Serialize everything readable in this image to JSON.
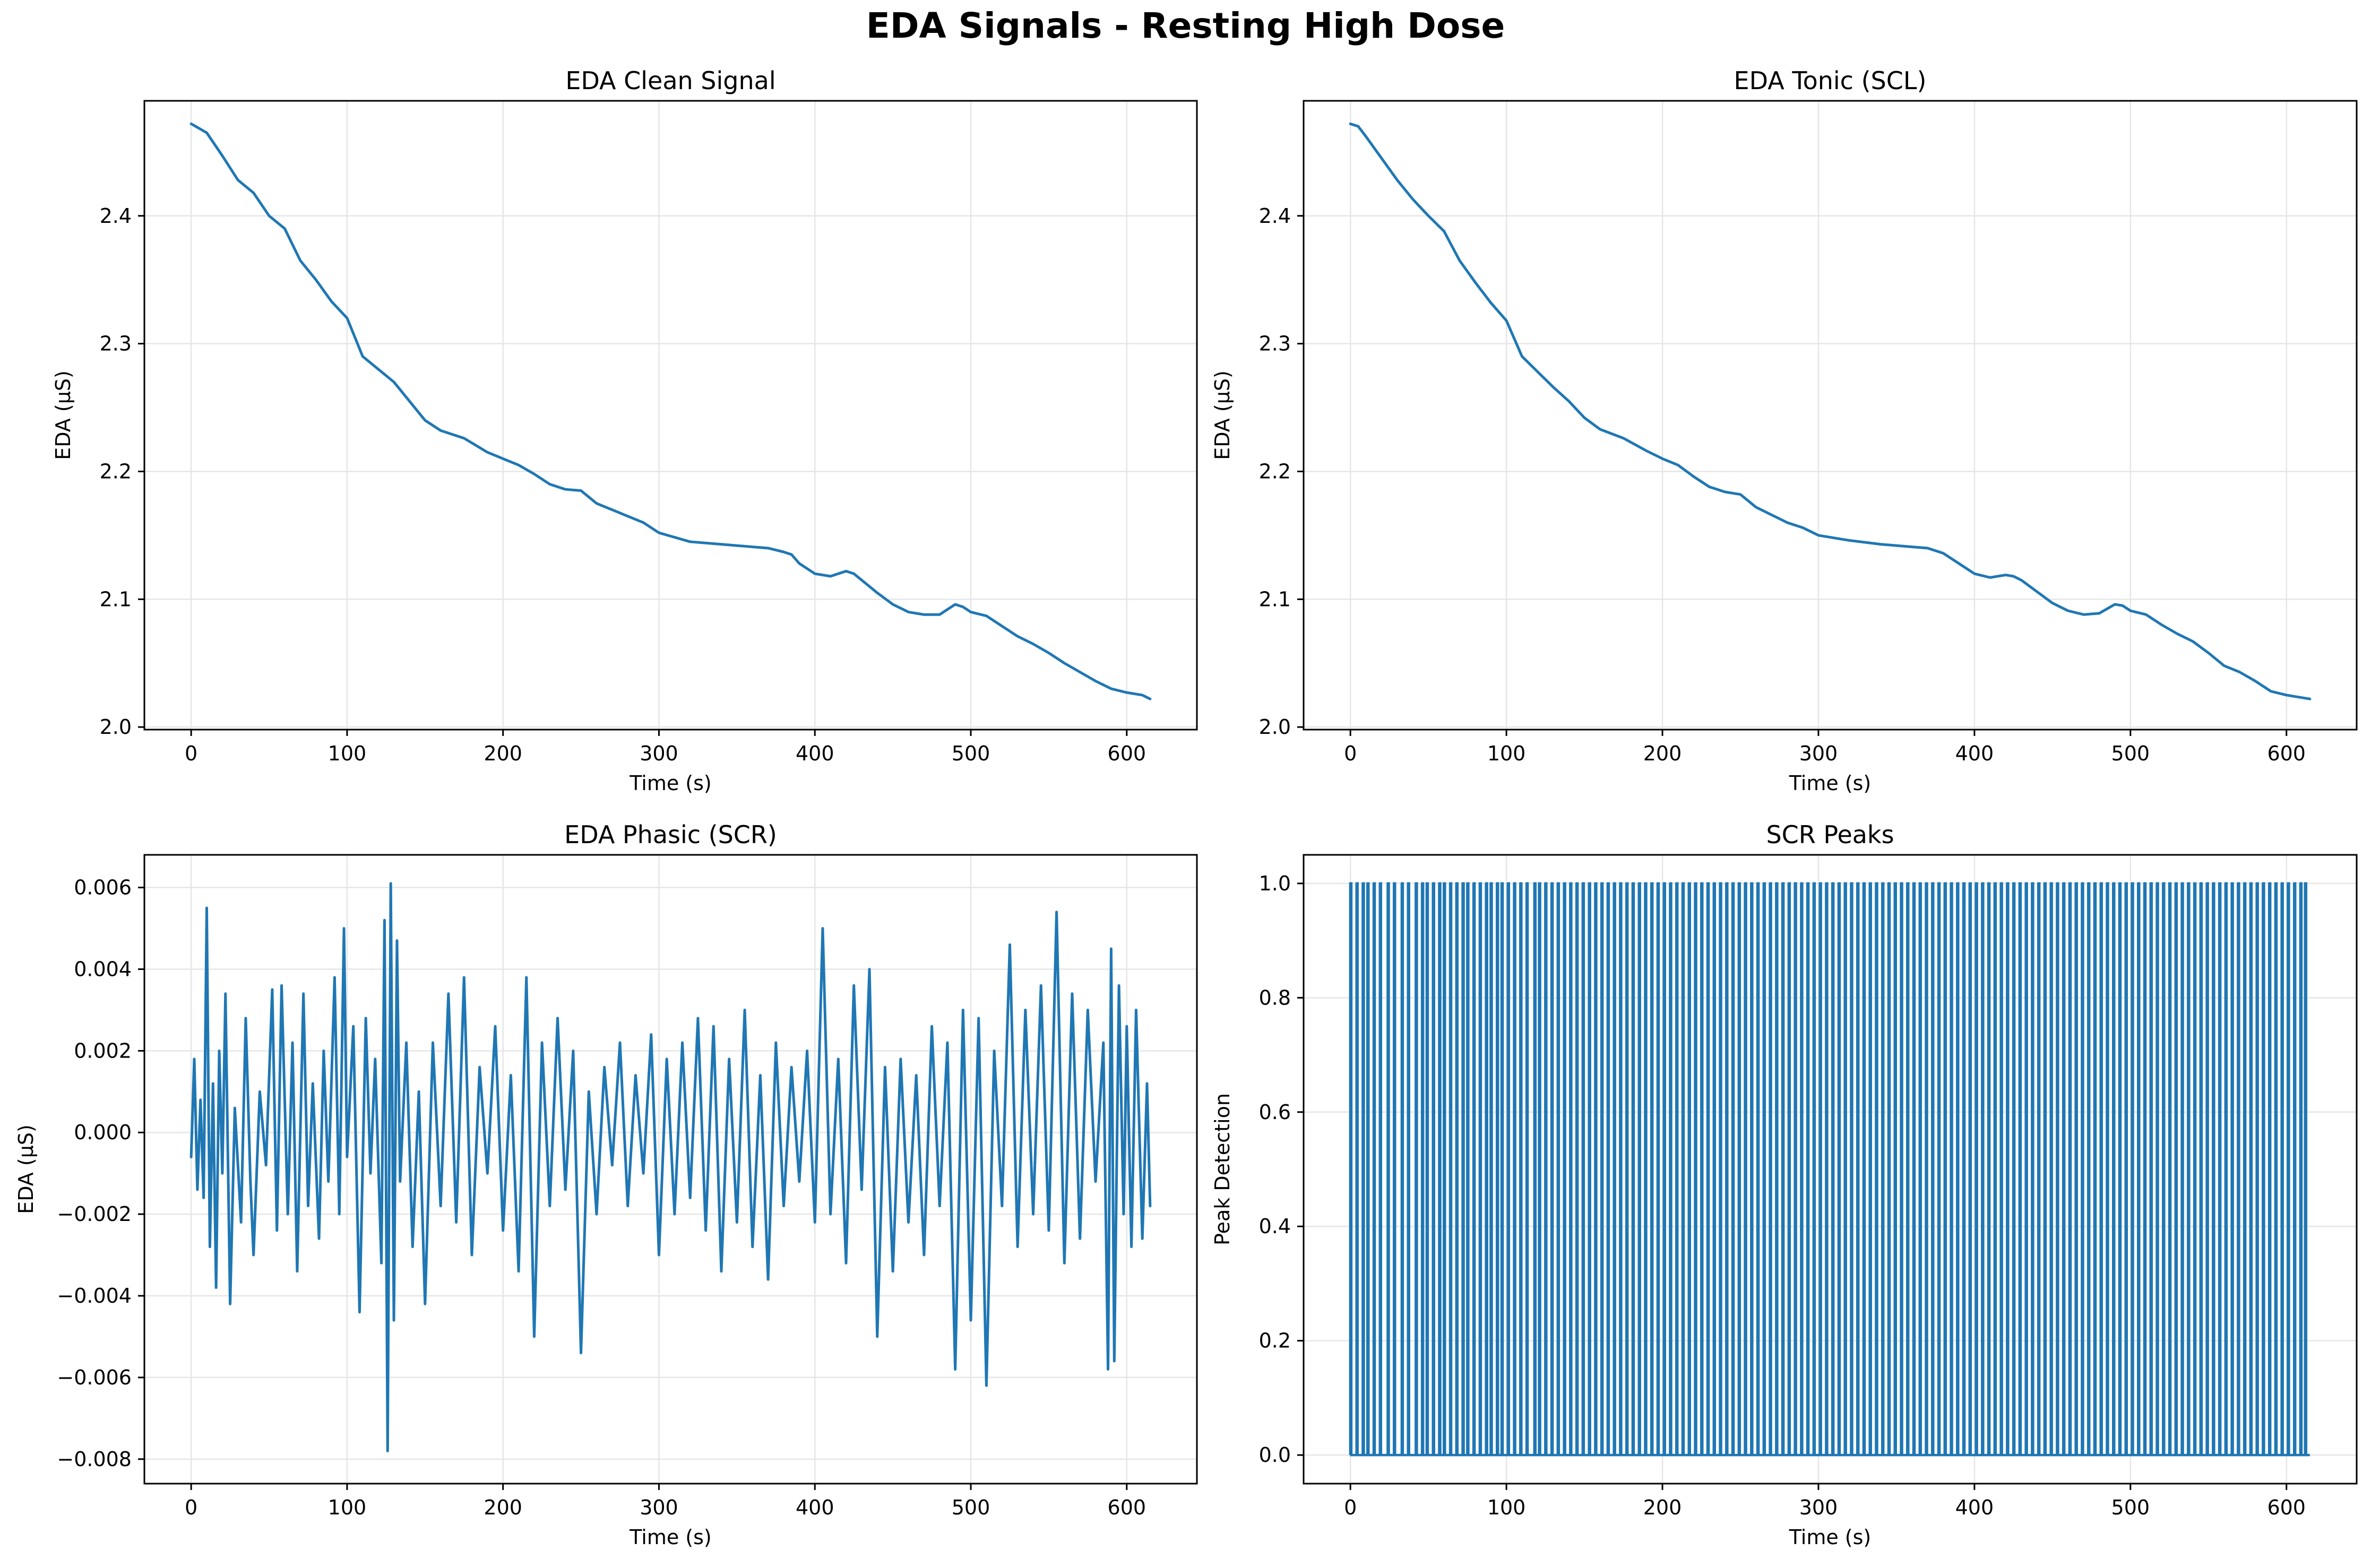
{
  "figure": {
    "suptitle": "EDA Signals - Resting High Dose"
  },
  "colors": {
    "line": "#1f77b4",
    "grid": "#e6e6e6",
    "axis": "#000000"
  },
  "chart_data": [
    {
      "type": "line",
      "title": "EDA Clean Signal",
      "xlabel": "Time (s)",
      "ylabel": "EDA (µS)",
      "xlim": [
        -30,
        645
      ],
      "ylim": [
        1.998,
        2.49
      ],
      "xticks": [
        0,
        100,
        200,
        300,
        400,
        500,
        600
      ],
      "yticks": [
        2.0,
        2.1,
        2.2,
        2.3,
        2.4
      ],
      "ytick_labels": [
        "2.0",
        "2.1",
        "2.2",
        "2.3",
        "2.4"
      ],
      "grid": true,
      "legend": "none",
      "x": [
        0,
        10,
        20,
        30,
        40,
        50,
        60,
        70,
        80,
        90,
        100,
        105,
        110,
        120,
        125,
        130,
        140,
        150,
        160,
        175,
        190,
        200,
        210,
        220,
        230,
        240,
        250,
        260,
        270,
        280,
        290,
        300,
        320,
        340,
        360,
        370,
        380,
        385,
        390,
        400,
        410,
        420,
        425,
        430,
        440,
        450,
        460,
        470,
        480,
        490,
        495,
        500,
        510,
        520,
        530,
        540,
        550,
        560,
        570,
        580,
        590,
        600,
        610,
        615
      ],
      "y": [
        2.472,
        2.465,
        2.447,
        2.428,
        2.418,
        2.4,
        2.39,
        2.365,
        2.35,
        2.333,
        2.32,
        2.305,
        2.29,
        2.28,
        2.275,
        2.27,
        2.255,
        2.24,
        2.232,
        2.226,
        2.215,
        2.21,
        2.205,
        2.198,
        2.19,
        2.186,
        2.185,
        2.175,
        2.17,
        2.165,
        2.16,
        2.152,
        2.145,
        2.143,
        2.141,
        2.14,
        2.137,
        2.135,
        2.128,
        2.12,
        2.118,
        2.122,
        2.12,
        2.115,
        2.105,
        2.096,
        2.09,
        2.088,
        2.088,
        2.096,
        2.094,
        2.09,
        2.087,
        2.079,
        2.071,
        2.065,
        2.058,
        2.05,
        2.043,
        2.036,
        2.03,
        2.027,
        2.025,
        2.022
      ]
    },
    {
      "type": "line",
      "title": "EDA Tonic (SCL)",
      "xlabel": "Time (s)",
      "ylabel": "EDA (µS)",
      "xlim": [
        -30,
        645
      ],
      "ylim": [
        1.998,
        2.49
      ],
      "xticks": [
        0,
        100,
        200,
        300,
        400,
        500,
        600
      ],
      "yticks": [
        2.0,
        2.1,
        2.2,
        2.3,
        2.4
      ],
      "ytick_labels": [
        "2.0",
        "2.1",
        "2.2",
        "2.3",
        "2.4"
      ],
      "grid": true,
      "legend": "none",
      "x": [
        0,
        5,
        10,
        20,
        30,
        40,
        50,
        60,
        70,
        80,
        90,
        100,
        110,
        120,
        130,
        140,
        150,
        160,
        175,
        190,
        200,
        210,
        220,
        230,
        240,
        250,
        260,
        270,
        280,
        290,
        300,
        320,
        340,
        360,
        370,
        380,
        390,
        400,
        410,
        420,
        425,
        430,
        440,
        450,
        460,
        470,
        480,
        490,
        495,
        500,
        510,
        520,
        530,
        540,
        550,
        560,
        570,
        580,
        590,
        600,
        610,
        615
      ],
      "y": [
        2.472,
        2.47,
        2.462,
        2.445,
        2.428,
        2.413,
        2.4,
        2.388,
        2.365,
        2.348,
        2.332,
        2.318,
        2.29,
        2.278,
        2.266,
        2.255,
        2.242,
        2.233,
        2.226,
        2.216,
        2.21,
        2.205,
        2.196,
        2.188,
        2.184,
        2.182,
        2.172,
        2.166,
        2.16,
        2.156,
        2.15,
        2.146,
        2.143,
        2.141,
        2.14,
        2.136,
        2.128,
        2.12,
        2.117,
        2.119,
        2.118,
        2.115,
        2.106,
        2.097,
        2.091,
        2.088,
        2.089,
        2.096,
        2.095,
        2.091,
        2.088,
        2.08,
        2.073,
        2.067,
        2.058,
        2.048,
        2.043,
        2.036,
        2.028,
        2.025,
        2.023,
        2.022
      ]
    },
    {
      "type": "line",
      "title": "EDA Phasic (SCR)",
      "xlabel": "Time (s)",
      "ylabel": "EDA (µS)",
      "xlim": [
        -30,
        645
      ],
      "ylim": [
        -0.0086,
        0.0068
      ],
      "xticks": [
        0,
        100,
        200,
        300,
        400,
        500,
        600
      ],
      "yticks": [
        -0.008,
        -0.006,
        -0.004,
        -0.002,
        0.0,
        0.002,
        0.004,
        0.006
      ],
      "ytick_labels": [
        "−0.008",
        "−0.006",
        "−0.004",
        "−0.002",
        "0.000",
        "0.002",
        "0.004",
        "0.006"
      ],
      "grid": true,
      "legend": "none",
      "x": [
        0,
        2,
        4,
        6,
        8,
        10,
        12,
        14,
        16,
        18,
        20,
        22,
        25,
        28,
        32,
        35,
        38,
        40,
        44,
        48,
        52,
        55,
        58,
        62,
        65,
        68,
        72,
        75,
        78,
        82,
        85,
        88,
        92,
        95,
        98,
        100,
        104,
        108,
        112,
        115,
        118,
        122,
        124,
        126,
        128,
        130,
        132,
        134,
        138,
        142,
        146,
        150,
        155,
        160,
        165,
        170,
        175,
        180,
        185,
        190,
        195,
        200,
        205,
        210,
        215,
        220,
        225,
        230,
        235,
        240,
        245,
        250,
        255,
        260,
        265,
        270,
        275,
        280,
        285,
        290,
        295,
        300,
        305,
        310,
        315,
        320,
        325,
        330,
        335,
        340,
        345,
        350,
        355,
        360,
        365,
        370,
        375,
        380,
        385,
        390,
        395,
        400,
        405,
        410,
        415,
        420,
        425,
        430,
        435,
        440,
        445,
        450,
        455,
        460,
        465,
        470,
        475,
        480,
        485,
        490,
        495,
        500,
        505,
        510,
        515,
        520,
        525,
        530,
        535,
        540,
        545,
        550,
        555,
        560,
        565,
        570,
        575,
        580,
        585,
        588,
        590,
        592,
        595,
        598,
        600,
        603,
        606,
        610,
        613,
        615
      ],
      "y": [
        -0.0006,
        0.0018,
        -0.0014,
        0.0008,
        -0.0016,
        0.0055,
        -0.0028,
        0.0012,
        -0.0038,
        0.002,
        -0.001,
        0.0034,
        -0.0042,
        0.0006,
        -0.0022,
        0.0028,
        -0.0012,
        -0.003,
        0.001,
        -0.0008,
        0.0035,
        -0.0024,
        0.0036,
        -0.002,
        0.0022,
        -0.0034,
        0.0034,
        -0.0018,
        0.0012,
        -0.0026,
        0.002,
        -0.0012,
        0.0038,
        -0.002,
        0.005,
        -0.0006,
        0.0026,
        -0.0044,
        0.0028,
        -0.001,
        0.0018,
        -0.0032,
        0.0052,
        -0.0078,
        0.0061,
        -0.0046,
        0.0047,
        -0.0012,
        0.0022,
        -0.0028,
        0.001,
        -0.0042,
        0.0022,
        -0.0018,
        0.0034,
        -0.0022,
        0.0038,
        -0.003,
        0.0016,
        -0.001,
        0.0026,
        -0.0024,
        0.0014,
        -0.0034,
        0.0038,
        -0.005,
        0.0022,
        -0.0018,
        0.0028,
        -0.0014,
        0.002,
        -0.0054,
        0.001,
        -0.002,
        0.0016,
        -0.0008,
        0.0022,
        -0.0018,
        0.0014,
        -0.001,
        0.0024,
        -0.003,
        0.0018,
        -0.002,
        0.0022,
        -0.0016,
        0.0028,
        -0.0024,
        0.0026,
        -0.0034,
        0.0018,
        -0.0022,
        0.003,
        -0.0028,
        0.0014,
        -0.0036,
        0.0022,
        -0.0018,
        0.0016,
        -0.0012,
        0.002,
        -0.0022,
        0.005,
        -0.002,
        0.0018,
        -0.0032,
        0.0036,
        -0.0014,
        0.004,
        -0.005,
        0.0016,
        -0.0034,
        0.0018,
        -0.0022,
        0.0014,
        -0.003,
        0.0026,
        -0.0018,
        0.0022,
        -0.0058,
        0.003,
        -0.0046,
        0.0028,
        -0.0062,
        0.002,
        -0.0018,
        0.0046,
        -0.0028,
        0.003,
        -0.002,
        0.0036,
        -0.0024,
        0.0054,
        -0.0032,
        0.0034,
        -0.0026,
        0.003,
        -0.0012,
        0.0022,
        -0.0058,
        0.0045,
        -0.0056,
        0.0036,
        -0.002,
        0.0026,
        -0.0028,
        0.003,
        -0.0026,
        0.0012,
        -0.0018
      ]
    },
    {
      "type": "line",
      "title": "SCR Peaks",
      "xlabel": "Time (s)",
      "ylabel": "Peak Detection",
      "xlim": [
        -30,
        645
      ],
      "ylim": [
        -0.05,
        1.05
      ],
      "xticks": [
        0,
        100,
        200,
        300,
        400,
        500,
        600
      ],
      "yticks": [
        0.0,
        0.2,
        0.4,
        0.6,
        0.8,
        1.0
      ],
      "ytick_labels": [
        "0.0",
        "0.2",
        "0.4",
        "0.6",
        "0.8",
        "1.0"
      ],
      "grid": true,
      "legend": "none",
      "peak_times": [
        0,
        4,
        8,
        11,
        15,
        19,
        24,
        28,
        33,
        37,
        42,
        46,
        49,
        53,
        57,
        60,
        64,
        68,
        72,
        75,
        79,
        83,
        87,
        90,
        94,
        97,
        101,
        105,
        109,
        113,
        118,
        121,
        125,
        129,
        133,
        137,
        141,
        145,
        149,
        153,
        157,
        161,
        165,
        169,
        173,
        177,
        181,
        185,
        189,
        193,
        197,
        201,
        205,
        209,
        213,
        217,
        221,
        225,
        229,
        233,
        237,
        241,
        245,
        249,
        253,
        257,
        261,
        265,
        269,
        273,
        277,
        281,
        285,
        289,
        293,
        297,
        301,
        305,
        309,
        313,
        317,
        321,
        325,
        329,
        333,
        337,
        341,
        345,
        349,
        353,
        357,
        361,
        365,
        369,
        373,
        377,
        381,
        385,
        389,
        393,
        397,
        401,
        405,
        409,
        413,
        417,
        421,
        425,
        429,
        433,
        437,
        441,
        445,
        449,
        453,
        457,
        461,
        465,
        469,
        473,
        477,
        481,
        485,
        489,
        493,
        497,
        501,
        505,
        509,
        513,
        517,
        521,
        525,
        529,
        533,
        537,
        541,
        545,
        549,
        553,
        557,
        561,
        565,
        569,
        573,
        577,
        581,
        585,
        589,
        593,
        597,
        601,
        605,
        609,
        612
      ],
      "baseline_end": 615
    }
  ]
}
